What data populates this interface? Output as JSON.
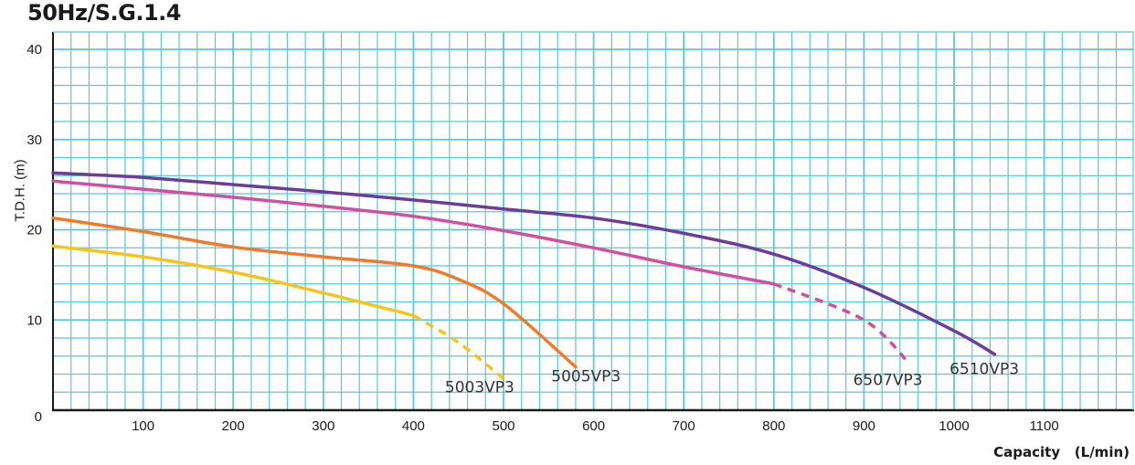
{
  "chart_data": {
    "type": "line",
    "title": "50Hz/S.G.1.4",
    "xlabel": "Capacity   (L/min)",
    "ylabel": "T.D.H.   (m)",
    "xlim": [
      0,
      1200
    ],
    "ylim": [
      0,
      42
    ],
    "x_ticks": [
      "100",
      "200",
      "300",
      "400",
      "500",
      "600",
      "700",
      "800",
      "900",
      "1000",
      "1100"
    ],
    "y_ticks": [
      "0",
      "10",
      "20",
      "30",
      "40"
    ],
    "grid": true,
    "grid_color": "#5bc8d2",
    "series": [
      {
        "name": "5003VP3",
        "color": "#f5c518",
        "points": [
          [
            0,
            18.2
          ],
          [
            100,
            17.0
          ],
          [
            200,
            15.3
          ],
          [
            300,
            13.0
          ],
          [
            400,
            10.5
          ]
        ],
        "dashed_points": [
          [
            400,
            10.5
          ],
          [
            450,
            7.5
          ],
          [
            500,
            3.5
          ]
        ],
        "label_at": [
          435,
          2.0
        ]
      },
      {
        "name": "5005VP3",
        "color": "#f07a2a",
        "points": [
          [
            0,
            21.3
          ],
          [
            100,
            19.8
          ],
          [
            200,
            18.1
          ],
          [
            300,
            17.0
          ],
          [
            400,
            16.0
          ],
          [
            450,
            14.5
          ],
          [
            500,
            11.8
          ],
          [
            580,
            4.8
          ]
        ],
        "dashed_points": [],
        "label_at": [
          553,
          3.2
        ]
      },
      {
        "name": "6507VP3",
        "color": "#d14fa0",
        "points": [
          [
            0,
            25.4
          ],
          [
            100,
            24.5
          ],
          [
            200,
            23.6
          ],
          [
            300,
            22.6
          ],
          [
            400,
            21.5
          ],
          [
            500,
            19.9
          ],
          [
            600,
            18.0
          ],
          [
            700,
            15.9
          ],
          [
            800,
            14.0
          ]
        ],
        "dashed_points": [
          [
            800,
            14.0
          ],
          [
            900,
            10.0
          ],
          [
            950,
            5.2
          ]
        ],
        "label_at": [
          888,
          2.8
        ]
      },
      {
        "name": "6510VP3",
        "color": "#6a3d9a",
        "points": [
          [
            0,
            26.3
          ],
          [
            100,
            25.8
          ],
          [
            200,
            25.0
          ],
          [
            300,
            24.2
          ],
          [
            400,
            23.3
          ],
          [
            500,
            22.3
          ],
          [
            600,
            21.3
          ],
          [
            700,
            19.6
          ],
          [
            800,
            17.3
          ],
          [
            900,
            13.6
          ],
          [
            1000,
            8.8
          ],
          [
            1045,
            6.2
          ]
        ],
        "dashed_points": [],
        "label_at": [
          995,
          4.0
        ]
      }
    ]
  }
}
